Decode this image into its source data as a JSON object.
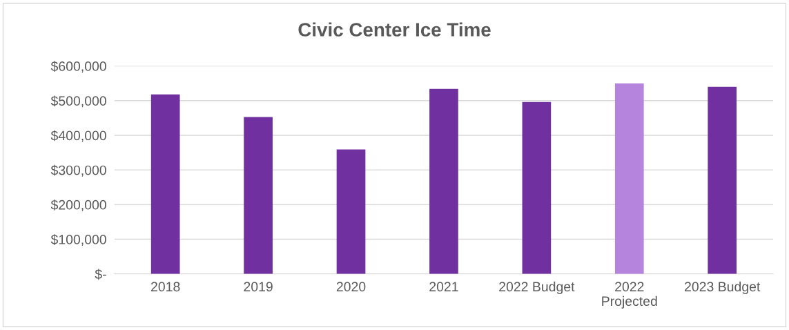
{
  "chart_data": {
    "type": "bar",
    "title": "Civic Center Ice Time",
    "categories": [
      "2018",
      "2019",
      "2020",
      "2021",
      "2022 Budget",
      "2022\nProjected",
      "2023 Budget"
    ],
    "values": [
      518000,
      453000,
      359000,
      534000,
      496000,
      550000,
      540000
    ],
    "colors": [
      "#7030a0",
      "#7030a0",
      "#7030a0",
      "#7030a0",
      "#7030a0",
      "#b584dc",
      "#7030a0"
    ],
    "ylim": [
      0,
      600000
    ],
    "yticks": [
      {
        "value": 0,
        "label": "$-"
      },
      {
        "value": 100000,
        "label": "$100,000"
      },
      {
        "value": 200000,
        "label": "$200,000"
      },
      {
        "value": 300000,
        "label": "$300,000"
      },
      {
        "value": 400000,
        "label": "$400,000"
      },
      {
        "value": 500000,
        "label": "$500,000"
      },
      {
        "value": 600000,
        "label": "$600,000"
      }
    ],
    "grid": "y"
  }
}
